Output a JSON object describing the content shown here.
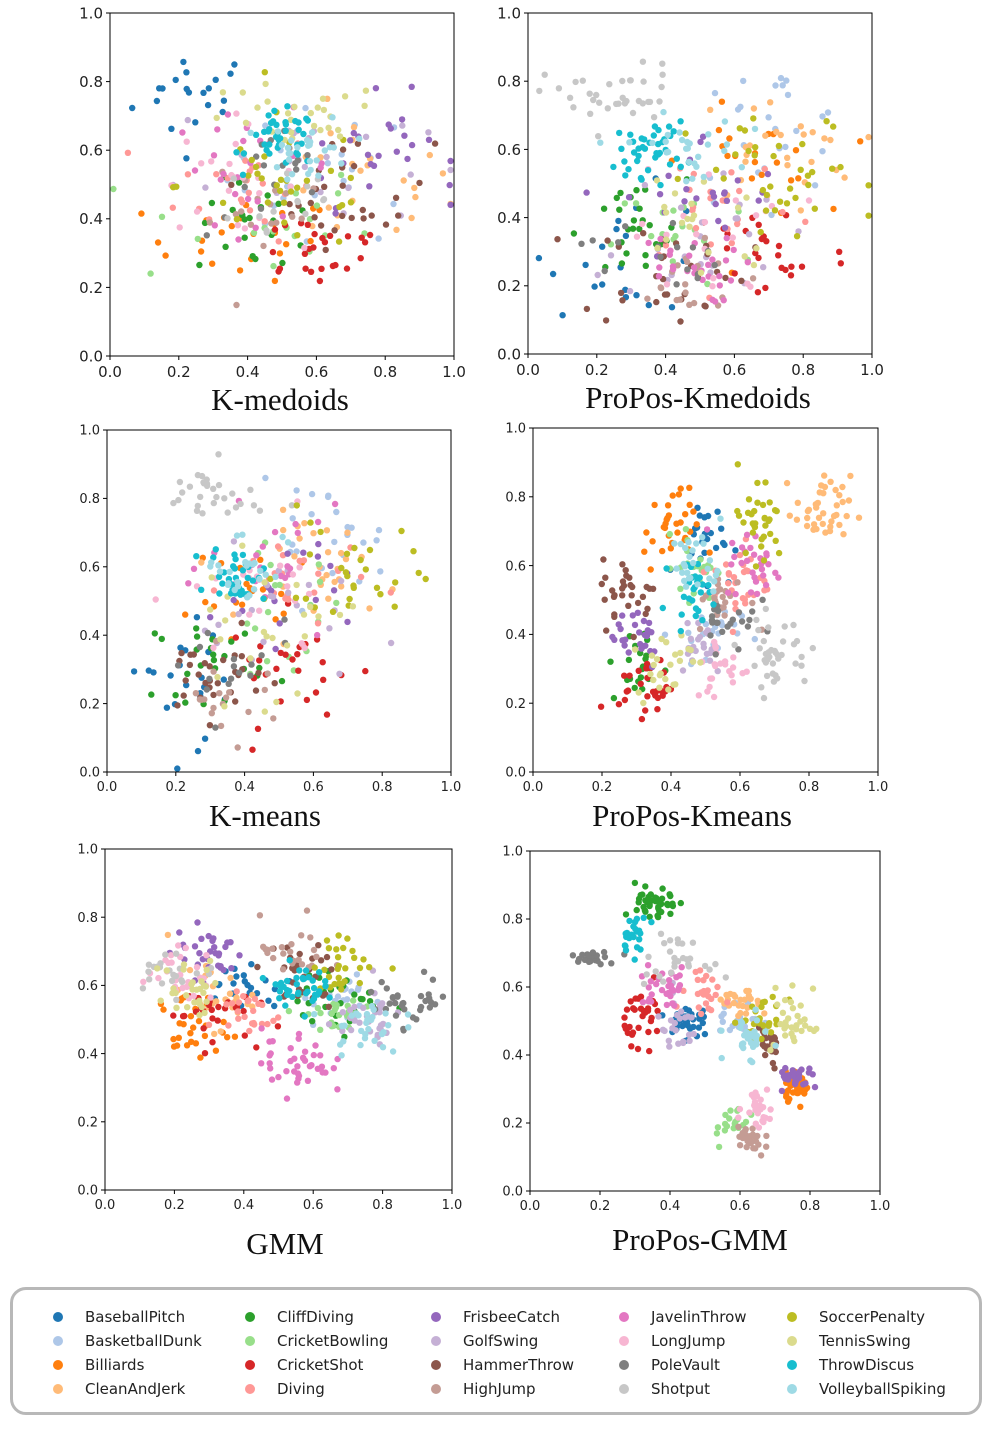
{
  "classes": [
    {
      "name": "BaseballPitch",
      "color": "#1f77b4"
    },
    {
      "name": "BasketballDunk",
      "color": "#aec7e8"
    },
    {
      "name": "Billiards",
      "color": "#ff7f0e"
    },
    {
      "name": "CleanAndJerk",
      "color": "#ffbb78"
    },
    {
      "name": "CliffDiving",
      "color": "#2ca02c"
    },
    {
      "name": "CricketBowling",
      "color": "#98df8a"
    },
    {
      "name": "CricketShot",
      "color": "#d62728"
    },
    {
      "name": "Diving",
      "color": "#ff9896"
    },
    {
      "name": "FrisbeeCatch",
      "color": "#9467bd"
    },
    {
      "name": "GolfSwing",
      "color": "#c5b0d5"
    },
    {
      "name": "HammerThrow",
      "color": "#8c564b"
    },
    {
      "name": "HighJump",
      "color": "#c49c94"
    },
    {
      "name": "JavelinThrow",
      "color": "#e377c2"
    },
    {
      "name": "LongJump",
      "color": "#f7b6d2"
    },
    {
      "name": "PoleVault",
      "color": "#7f7f7f"
    },
    {
      "name": "Shotput",
      "color": "#c7c7c7"
    },
    {
      "name": "SoccerPenalty",
      "color": "#bcbd22"
    },
    {
      "name": "TennisSwing",
      "color": "#dbdb8d"
    },
    {
      "name": "ThrowDiscus",
      "color": "#17becf"
    },
    {
      "name": "VolleyballSpiking",
      "color": "#9edae5"
    }
  ],
  "chart_data": [
    {
      "type": "scatter",
      "title": "K-medoids",
      "xlim": [
        0,
        1
      ],
      "ylim": [
        0,
        1
      ],
      "xticks": [
        "0.0",
        "0.2",
        "0.4",
        "0.6",
        "0.8",
        "1.0"
      ],
      "yticks": [
        "0.0",
        "0.2",
        "0.4",
        "0.6",
        "0.8",
        "1.0"
      ],
      "clusters": [
        [
          0,
          0.25,
          0.76,
          0.09,
          0.07,
          20
        ],
        [
          1,
          0.62,
          0.52,
          0.14,
          0.1,
          22
        ],
        [
          2,
          0.38,
          0.34,
          0.14,
          0.06,
          24
        ],
        [
          3,
          0.72,
          0.5,
          0.14,
          0.1,
          24
        ],
        [
          4,
          0.45,
          0.37,
          0.1,
          0.07,
          22
        ],
        [
          5,
          0.4,
          0.38,
          0.18,
          0.1,
          18
        ],
        [
          6,
          0.6,
          0.32,
          0.12,
          0.06,
          26
        ],
        [
          7,
          0.4,
          0.5,
          0.1,
          0.08,
          22
        ],
        [
          8,
          0.78,
          0.6,
          0.12,
          0.08,
          26
        ],
        [
          9,
          0.55,
          0.57,
          0.18,
          0.1,
          24
        ],
        [
          10,
          0.7,
          0.48,
          0.12,
          0.08,
          28
        ],
        [
          11,
          0.45,
          0.42,
          0.08,
          0.08,
          18
        ],
        [
          12,
          0.42,
          0.55,
          0.12,
          0.08,
          24
        ],
        [
          13,
          0.34,
          0.52,
          0.1,
          0.08,
          22
        ],
        [
          14,
          0.48,
          0.5,
          0.1,
          0.08,
          16
        ],
        [
          15,
          0.5,
          0.45,
          0.1,
          0.08,
          14
        ],
        [
          16,
          0.52,
          0.5,
          0.16,
          0.1,
          32
        ],
        [
          17,
          0.52,
          0.68,
          0.14,
          0.06,
          28
        ],
        [
          18,
          0.5,
          0.63,
          0.05,
          0.04,
          40
        ],
        [
          19,
          0.58,
          0.6,
          0.06,
          0.05,
          28
        ]
      ]
    },
    {
      "type": "scatter",
      "title": "ProPos-Kmedoids",
      "xlim": [
        0,
        1
      ],
      "ylim": [
        0,
        1
      ],
      "xticks": [
        "0.0",
        "0.2",
        "0.4",
        "0.6",
        "0.8",
        "1.0"
      ],
      "yticks": [
        "0.0",
        "0.2",
        "0.4",
        "0.6",
        "0.8",
        "1.0"
      ],
      "clusters": [
        [
          0,
          0.3,
          0.3,
          0.12,
          0.09,
          20
        ],
        [
          1,
          0.7,
          0.65,
          0.12,
          0.1,
          24
        ],
        [
          2,
          0.65,
          0.56,
          0.1,
          0.08,
          22
        ],
        [
          3,
          0.72,
          0.6,
          0.12,
          0.08,
          26
        ],
        [
          4,
          0.3,
          0.35,
          0.08,
          0.08,
          26
        ],
        [
          5,
          0.45,
          0.35,
          0.1,
          0.08,
          18
        ],
        [
          6,
          0.7,
          0.3,
          0.12,
          0.08,
          26
        ],
        [
          7,
          0.55,
          0.45,
          0.12,
          0.1,
          22
        ],
        [
          8,
          0.52,
          0.45,
          0.12,
          0.1,
          24
        ],
        [
          9,
          0.5,
          0.35,
          0.12,
          0.1,
          24
        ],
        [
          10,
          0.4,
          0.25,
          0.12,
          0.08,
          30
        ],
        [
          11,
          0.45,
          0.2,
          0.1,
          0.06,
          20
        ],
        [
          12,
          0.45,
          0.25,
          0.08,
          0.05,
          28
        ],
        [
          13,
          0.55,
          0.35,
          0.12,
          0.1,
          20
        ],
        [
          14,
          0.35,
          0.3,
          0.1,
          0.06,
          16
        ],
        [
          15,
          0.25,
          0.75,
          0.1,
          0.05,
          36
        ],
        [
          16,
          0.75,
          0.5,
          0.14,
          0.1,
          36
        ],
        [
          17,
          0.5,
          0.4,
          0.12,
          0.1,
          20
        ],
        [
          18,
          0.36,
          0.6,
          0.05,
          0.04,
          40
        ],
        [
          19,
          0.45,
          0.6,
          0.08,
          0.05,
          28
        ]
      ]
    },
    {
      "type": "scatter",
      "title": "K-means",
      "xlim": [
        0,
        1
      ],
      "ylim": [
        0,
        1
      ],
      "xticks": [
        "0.0",
        "0.2",
        "0.4",
        "0.6",
        "0.8",
        "1.0"
      ],
      "yticks": [
        "0.0",
        "0.2",
        "0.4",
        "0.6",
        "0.8",
        "1.0"
      ],
      "clusters": [
        [
          0,
          0.25,
          0.3,
          0.1,
          0.1,
          22
        ],
        [
          1,
          0.62,
          0.68,
          0.1,
          0.08,
          24
        ],
        [
          2,
          0.45,
          0.5,
          0.1,
          0.08,
          18
        ],
        [
          3,
          0.65,
          0.6,
          0.1,
          0.08,
          30
        ],
        [
          4,
          0.3,
          0.33,
          0.08,
          0.06,
          24
        ],
        [
          5,
          0.5,
          0.45,
          0.1,
          0.1,
          18
        ],
        [
          6,
          0.55,
          0.3,
          0.1,
          0.08,
          26
        ],
        [
          7,
          0.55,
          0.55,
          0.1,
          0.08,
          22
        ],
        [
          8,
          0.5,
          0.55,
          0.1,
          0.08,
          20
        ],
        [
          9,
          0.5,
          0.45,
          0.12,
          0.1,
          24
        ],
        [
          10,
          0.3,
          0.28,
          0.08,
          0.06,
          30
        ],
        [
          11,
          0.35,
          0.22,
          0.08,
          0.06,
          18
        ],
        [
          12,
          0.5,
          0.6,
          0.1,
          0.08,
          22
        ],
        [
          13,
          0.45,
          0.5,
          0.12,
          0.1,
          20
        ],
        [
          14,
          0.35,
          0.3,
          0.1,
          0.08,
          16
        ],
        [
          15,
          0.3,
          0.8,
          0.08,
          0.05,
          30
        ],
        [
          16,
          0.7,
          0.58,
          0.1,
          0.08,
          30
        ],
        [
          17,
          0.45,
          0.4,
          0.12,
          0.1,
          24
        ],
        [
          18,
          0.38,
          0.58,
          0.04,
          0.04,
          36
        ],
        [
          19,
          0.4,
          0.6,
          0.06,
          0.06,
          26
        ]
      ]
    },
    {
      "type": "scatter",
      "title": "ProPos-Kmeans",
      "xlim": [
        0,
        1
      ],
      "ylim": [
        0,
        1
      ],
      "xticks": [
        "0.0",
        "0.2",
        "0.4",
        "0.6",
        "0.8",
        "1.0"
      ],
      "yticks": [
        "0.0",
        "0.2",
        "0.4",
        "0.6",
        "0.8",
        "1.0"
      ],
      "clusters": [
        [
          0,
          0.5,
          0.68,
          0.04,
          0.06,
          24
        ],
        [
          1,
          0.5,
          0.4,
          0.05,
          0.05,
          26
        ],
        [
          2,
          0.4,
          0.7,
          0.04,
          0.06,
          32
        ],
        [
          3,
          0.84,
          0.76,
          0.04,
          0.05,
          40
        ],
        [
          4,
          0.3,
          0.3,
          0.04,
          0.06,
          22
        ],
        [
          5,
          0.47,
          0.6,
          0.03,
          0.05,
          24
        ],
        [
          6,
          0.33,
          0.25,
          0.04,
          0.04,
          28
        ],
        [
          7,
          0.6,
          0.55,
          0.04,
          0.06,
          30
        ],
        [
          8,
          0.3,
          0.4,
          0.04,
          0.05,
          26
        ],
        [
          9,
          0.48,
          0.38,
          0.04,
          0.05,
          22
        ],
        [
          10,
          0.28,
          0.52,
          0.04,
          0.05,
          30
        ],
        [
          11,
          0.55,
          0.5,
          0.04,
          0.04,
          22
        ],
        [
          12,
          0.64,
          0.6,
          0.04,
          0.05,
          30
        ],
        [
          13,
          0.55,
          0.3,
          0.04,
          0.05,
          24
        ],
        [
          14,
          0.57,
          0.45,
          0.04,
          0.05,
          22
        ],
        [
          15,
          0.7,
          0.35,
          0.05,
          0.05,
          38
        ],
        [
          16,
          0.65,
          0.72,
          0.04,
          0.08,
          34
        ],
        [
          17,
          0.38,
          0.32,
          0.04,
          0.05,
          26
        ],
        [
          18,
          0.46,
          0.53,
          0.03,
          0.04,
          26
        ],
        [
          19,
          0.48,
          0.6,
          0.04,
          0.05,
          28
        ]
      ]
    },
    {
      "type": "scatter",
      "title": "GMM",
      "xlim": [
        0,
        1
      ],
      "ylim": [
        0,
        1
      ],
      "xticks": [
        "0.0",
        "0.2",
        "0.4",
        "0.6",
        "0.8",
        "1.0"
      ],
      "yticks": [
        "0.0",
        "0.2",
        "0.4",
        "0.6",
        "0.8",
        "1.0"
      ],
      "clusters": [
        [
          0,
          0.4,
          0.6,
          0.07,
          0.04,
          22
        ],
        [
          1,
          0.7,
          0.55,
          0.05,
          0.04,
          26
        ],
        [
          2,
          0.25,
          0.48,
          0.05,
          0.05,
          30
        ],
        [
          3,
          0.3,
          0.57,
          0.06,
          0.05,
          26
        ],
        [
          4,
          0.68,
          0.55,
          0.06,
          0.04,
          28
        ],
        [
          5,
          0.65,
          0.52,
          0.06,
          0.04,
          24
        ],
        [
          6,
          0.3,
          0.52,
          0.06,
          0.04,
          28
        ],
        [
          7,
          0.4,
          0.52,
          0.05,
          0.04,
          24
        ],
        [
          8,
          0.3,
          0.7,
          0.05,
          0.04,
          32
        ],
        [
          9,
          0.75,
          0.5,
          0.06,
          0.04,
          30
        ],
        [
          10,
          0.55,
          0.62,
          0.06,
          0.05,
          30
        ],
        [
          11,
          0.55,
          0.7,
          0.05,
          0.05,
          24
        ],
        [
          12,
          0.55,
          0.38,
          0.05,
          0.05,
          40
        ],
        [
          13,
          0.22,
          0.63,
          0.05,
          0.04,
          30
        ],
        [
          14,
          0.88,
          0.55,
          0.06,
          0.04,
          32
        ],
        [
          15,
          0.2,
          0.65,
          0.06,
          0.03,
          22
        ],
        [
          16,
          0.7,
          0.66,
          0.05,
          0.04,
          28
        ],
        [
          17,
          0.25,
          0.58,
          0.05,
          0.05,
          30
        ],
        [
          18,
          0.55,
          0.6,
          0.04,
          0.03,
          40
        ],
        [
          19,
          0.75,
          0.48,
          0.05,
          0.04,
          30
        ]
      ]
    },
    {
      "type": "scatter",
      "title": "ProPos-GMM",
      "xlim": [
        0,
        1
      ],
      "ylim": [
        0,
        1
      ],
      "xticks": [
        "0.0",
        "0.2",
        "0.4",
        "0.6",
        "0.8",
        "1.0"
      ],
      "yticks": [
        "0.0",
        "0.2",
        "0.4",
        "0.6",
        "0.8",
        "1.0"
      ],
      "clusters": [
        [
          0,
          0.45,
          0.5,
          0.03,
          0.03,
          34
        ],
        [
          1,
          0.6,
          0.5,
          0.03,
          0.03,
          24
        ],
        [
          2,
          0.76,
          0.31,
          0.02,
          0.02,
          40
        ],
        [
          3,
          0.6,
          0.55,
          0.03,
          0.02,
          24
        ],
        [
          4,
          0.36,
          0.84,
          0.03,
          0.03,
          44
        ],
        [
          5,
          0.58,
          0.2,
          0.03,
          0.03,
          20
        ],
        [
          6,
          0.33,
          0.52,
          0.03,
          0.04,
          32
        ],
        [
          7,
          0.5,
          0.57,
          0.04,
          0.03,
          24
        ],
        [
          8,
          0.77,
          0.33,
          0.03,
          0.02,
          26
        ],
        [
          9,
          0.42,
          0.48,
          0.03,
          0.04,
          24
        ],
        [
          10,
          0.68,
          0.42,
          0.02,
          0.03,
          24
        ],
        [
          11,
          0.63,
          0.15,
          0.02,
          0.03,
          28
        ],
        [
          12,
          0.38,
          0.6,
          0.04,
          0.03,
          32
        ],
        [
          13,
          0.65,
          0.25,
          0.02,
          0.03,
          28
        ],
        [
          14,
          0.18,
          0.69,
          0.03,
          0.01,
          26
        ],
        [
          15,
          0.4,
          0.68,
          0.05,
          0.03,
          28
        ],
        [
          16,
          0.67,
          0.5,
          0.03,
          0.03,
          26
        ],
        [
          17,
          0.75,
          0.5,
          0.03,
          0.05,
          32
        ],
        [
          18,
          0.3,
          0.75,
          0.02,
          0.03,
          24
        ],
        [
          19,
          0.62,
          0.45,
          0.03,
          0.03,
          30
        ]
      ]
    }
  ]
}
